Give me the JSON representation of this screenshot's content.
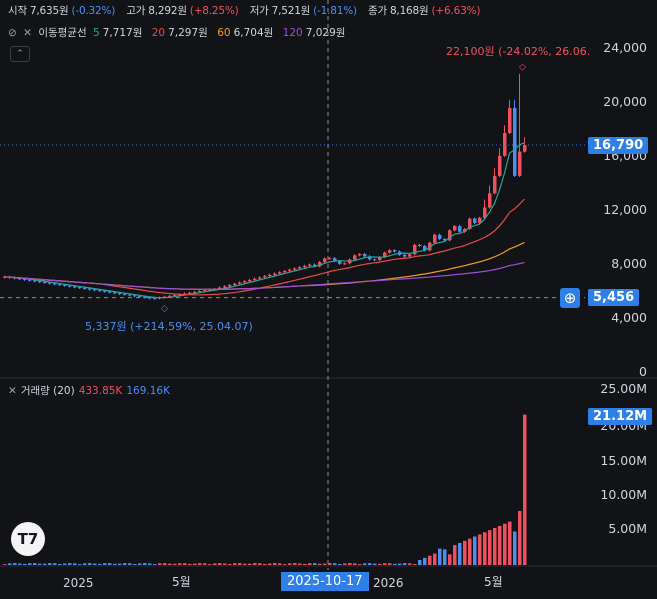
{
  "legend": {
    "open_label": "시작",
    "open_value": "7,635원",
    "open_change": "(-0.32%)",
    "high_label": "고가",
    "high_value": "8,292원",
    "high_change": "(+8.25%)",
    "low_label": "저가",
    "low_value": "7,521원",
    "low_change": "(-1.81%)",
    "close_label": "종가",
    "close_value": "8,168원",
    "close_change": "(+6.63%)"
  },
  "ma": {
    "label": "이동평균선",
    "p5": "5",
    "v5": "7,717원",
    "p20": "20",
    "v20": "7,297원",
    "p60": "60",
    "v60": "6,704원",
    "p120": "120",
    "v120": "7,029원"
  },
  "price_axis": [
    "24,000",
    "20,000",
    "16,000",
    "12,000",
    "8,000",
    "4,000",
    "0"
  ],
  "volume_axis": [
    "25.00M",
    "20.00M",
    "15.00M",
    "10.00M",
    "5.00M"
  ],
  "current_price_tag": "16,790",
  "crosshair_price_tag": "5,456",
  "volume_tag": "21.12M",
  "high_annotation": "22,100원 (-24.02%, 26.06.",
  "low_annotation": "5,337원 (+214.59%, 25.04.07)",
  "volume_legend": {
    "label": "거래량 (20)",
    "v1": "433.85K",
    "v2": "169.16K"
  },
  "x_axis": {
    "y2025": "2025",
    "may1": "5월",
    "crosshair_date": "2025-10-17",
    "y2026": "2026",
    "may2": "5월"
  },
  "colors": {
    "up": "#f0505e",
    "down": "#4a8ff0",
    "ma5": "#26a69a",
    "ma20": "#e84a4a",
    "ma60": "#f29b2a",
    "ma120": "#9c4fd6",
    "tag": "#2f7fe8"
  },
  "icons": {
    "logo": "tradingview-logo-icon",
    "plus": "plus-circle-icon",
    "eye": "eye-off-icon",
    "close": "close-icon",
    "collapse": "chevron-up-icon"
  },
  "chart_data": {
    "type": "candlestick",
    "price_range": [
      0,
      26000
    ],
    "current_price": 16790,
    "crosshair_price": 5456,
    "high_point": {
      "price": 22100,
      "label": "22,100원"
    },
    "low_point": {
      "price": 5337,
      "label": "5,337원"
    },
    "volume_range": [
      0,
      25000000
    ],
    "last_volume": 21120000
  }
}
